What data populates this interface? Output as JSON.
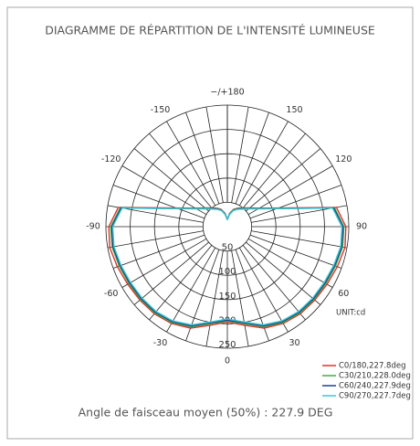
{
  "chart_data": {
    "type": "polar",
    "title": "DIAGRAMME DE RÉPARTITION DE L'INTENSITÉ LUMINEUSE",
    "unit_label": "UNIT:cd",
    "footer": "Angle de faisceau moyen (50%) : 227.9 DEG",
    "theta": [
      -180,
      -170,
      -160,
      -150,
      -140,
      -130,
      -120,
      -110,
      -100,
      -90,
      -80,
      -70,
      -60,
      -50,
      -40,
      -30,
      -20,
      -10,
      0,
      10,
      20,
      30,
      40,
      50,
      60,
      70,
      80,
      90,
      100,
      110,
      120,
      130,
      140,
      150,
      160,
      170,
      180
    ],
    "rlim": [
      0,
      250
    ],
    "rticks": [
      50,
      100,
      150,
      200,
      250
    ],
    "thetaticks": [
      {
        "value": 180,
        "label": "−/+180"
      },
      150,
      120,
      90,
      60,
      30,
      0,
      -30,
      -60,
      -90,
      -120,
      -150
    ],
    "series": [
      {
        "name": "C0/180,227.8deg",
        "color": "#e0312b",
        "values": [
          15,
          28,
          38,
          44,
          50,
          60,
          76,
          112,
          228,
          244,
          246,
          241,
          237,
          235,
          234,
          230,
          222,
          206,
          196,
          206,
          222,
          230,
          234,
          235,
          237,
          241,
          246,
          244,
          228,
          112,
          76,
          60,
          50,
          44,
          38,
          28,
          15
        ]
      },
      {
        "name": "C30/210,228.0deg",
        "color": "#3fae49",
        "values": [
          15,
          27,
          37,
          43,
          49,
          59,
          75,
          110,
          224,
          240,
          241,
          237,
          234,
          233,
          232,
          228,
          219,
          203,
          194,
          203,
          219,
          228,
          232,
          233,
          234,
          237,
          241,
          240,
          224,
          110,
          75,
          59,
          49,
          43,
          37,
          27,
          15
        ]
      },
      {
        "name": "C60/240,227.9deg",
        "color": "#1f3f8f",
        "values": [
          14,
          26,
          36,
          42,
          48,
          58,
          74,
          109,
          222,
          238,
          239,
          235,
          232,
          231,
          230,
          226,
          217,
          201,
          192,
          201,
          217,
          226,
          230,
          231,
          232,
          235,
          239,
          238,
          222,
          109,
          74,
          58,
          48,
          42,
          36,
          26,
          14
        ]
      },
      {
        "name": "C90/270,227.7deg",
        "color": "#3cc6d0",
        "values": [
          14,
          25,
          35,
          41,
          47,
          57,
          73,
          108,
          220,
          236,
          237,
          233,
          230,
          229,
          228,
          224,
          215,
          199,
          190,
          199,
          215,
          224,
          228,
          229,
          230,
          233,
          237,
          236,
          220,
          108,
          73,
          57,
          47,
          41,
          35,
          25,
          14
        ]
      }
    ]
  }
}
